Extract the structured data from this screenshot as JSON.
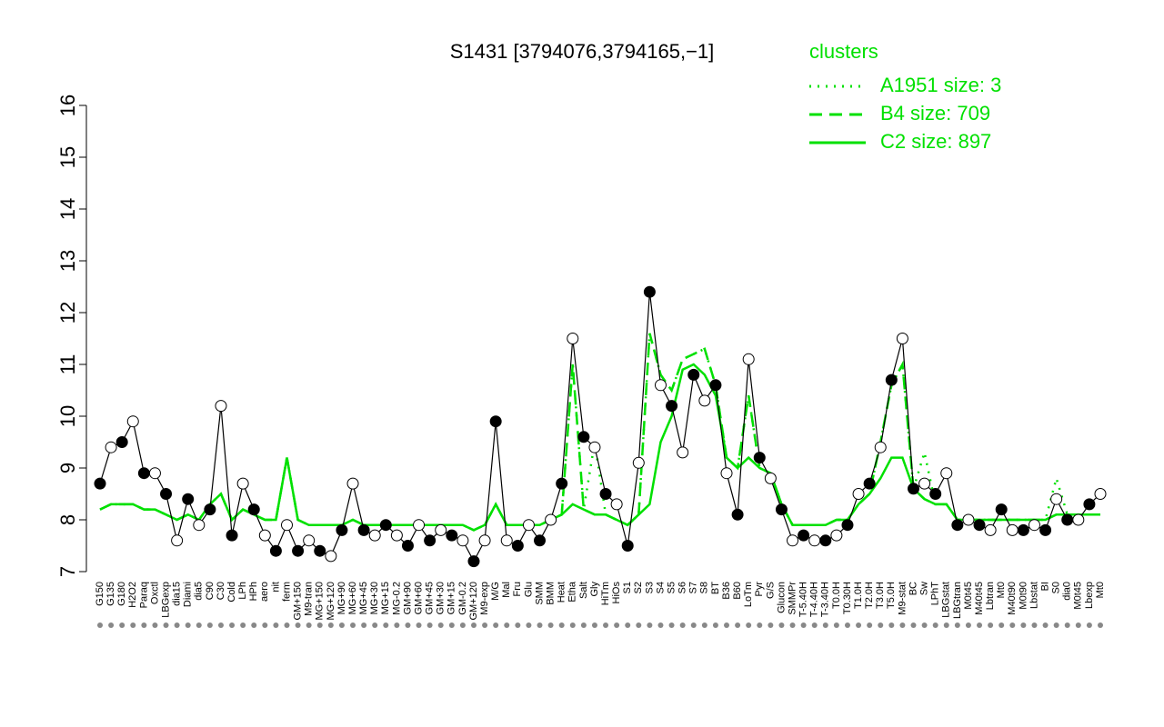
{
  "chart_data": {
    "type": "line",
    "title": "S1431 [3794076,3794165,−1]",
    "categories": [
      "G150",
      "G135",
      "G180",
      "H2O2",
      "Paraq",
      "Oxctl",
      "LBGexp",
      "dia15",
      "Diami",
      "dia5",
      "C90",
      "C30",
      "Cold",
      "LPh",
      "HPh",
      "aero",
      "nit",
      "ferm",
      "GM+150",
      "M9-tran",
      "MG+150",
      "MG+120",
      "MG+90",
      "MG+60",
      "MG+45",
      "MG+30",
      "MG+15",
      "MG-0.2",
      "GM+90",
      "GM+60",
      "GM+45",
      "GM+30",
      "GM+15",
      "GM-0.2",
      "GM+120",
      "M9-exp",
      "M/G",
      "Mal",
      "Fru",
      "Glu",
      "SMM",
      "BMM",
      "Heat",
      "Etha",
      "Salt",
      "Gly",
      "HiTm",
      "HiOs",
      "S1",
      "S2",
      "S3",
      "S4",
      "S5",
      "S6",
      "S7",
      "S8",
      "BT",
      "B36",
      "B60",
      "LoTm",
      "Pyr",
      "G/S",
      "Glucon",
      "SMMPr",
      "T-5.40H",
      "T-4.40H",
      "T-3.40H",
      "T0.0H",
      "T0.30H",
      "T1.0H",
      "T2.0H",
      "T3.0H",
      "T5.0H",
      "M9-stat",
      "BC",
      "Sw",
      "LPhT",
      "LBGstat",
      "LBGtran",
      "M0t45",
      "M40t45",
      "Lbtran",
      "Mt0",
      "M40t90",
      "M0t90",
      "Lbstat",
      "BI",
      "S0",
      "dia0",
      "M0t45",
      "Lbexp",
      "Mt0"
    ],
    "values": [
      8.7,
      9.4,
      9.5,
      9.9,
      8.9,
      8.9,
      8.5,
      7.6,
      8.4,
      7.9,
      8.2,
      10.2,
      7.7,
      8.7,
      8.2,
      7.7,
      7.4,
      7.9,
      7.4,
      7.6,
      7.4,
      7.3,
      7.8,
      8.7,
      7.8,
      7.7,
      7.9,
      7.7,
      7.5,
      7.9,
      7.6,
      7.8,
      7.7,
      7.6,
      7.2,
      7.6,
      9.9,
      7.6,
      7.5,
      7.9,
      7.6,
      8.0,
      8.7,
      11.5,
      9.6,
      9.4,
      8.5,
      8.3,
      7.5,
      9.1,
      12.4,
      10.6,
      10.2,
      9.3,
      10.8,
      10.3,
      10.6,
      8.9,
      8.1,
      11.1,
      9.2,
      8.8,
      8.2,
      7.6,
      7.7,
      7.6,
      7.6,
      7.7,
      7.9,
      8.5,
      8.7,
      9.4,
      10.7,
      11.5,
      8.6,
      8.7,
      8.5,
      8.9,
      7.9,
      8.0,
      7.9,
      7.8,
      8.2,
      7.8,
      7.8,
      7.9,
      7.8,
      8.4,
      8.0,
      8.0,
      8.3,
      8.5
    ],
    "color": "#000000",
    "legend_title": "clusters",
    "series": [
      {
        "name": "A1951 size: 3",
        "color": "#00e000",
        "dash": "dotted",
        "values": [
          8.2,
          8.3,
          8.3,
          8.3,
          8.2,
          8.2,
          8.1,
          8.0,
          8.1,
          8.0,
          8.3,
          8.5,
          8.0,
          8.2,
          8.1,
          8.0,
          8.0,
          9.2,
          8.0,
          7.9,
          7.9,
          7.9,
          7.9,
          8.0,
          7.9,
          7.9,
          7.9,
          7.9,
          7.9,
          7.9,
          7.9,
          7.9,
          7.9,
          7.9,
          7.8,
          7.9,
          8.3,
          7.9,
          7.9,
          7.9,
          7.9,
          8.0,
          8.1,
          11.0,
          8.2,
          9.5,
          8.1,
          8.0,
          7.9,
          8.1,
          11.6,
          10.8,
          10.5,
          11.1,
          11.2,
          11.3,
          10.6,
          9.2,
          9.0,
          10.4,
          9.0,
          8.9,
          8.3,
          7.9,
          7.9,
          7.9,
          7.9,
          8.0,
          8.0,
          8.3,
          8.5,
          9.5,
          10.6,
          11.0,
          8.6,
          9.3,
          8.3,
          8.3,
          8.0,
          8.0,
          8.0,
          8.0,
          8.0,
          8.0,
          8.0,
          8.0,
          8.0,
          8.8,
          8.1,
          8.1,
          8.1,
          8.1
        ]
      },
      {
        "name": "B4 size: 709",
        "color": "#00e000",
        "dash": "dashed",
        "values": [
          8.2,
          8.3,
          8.3,
          8.3,
          8.2,
          8.2,
          8.1,
          8.0,
          8.1,
          8.0,
          8.3,
          8.5,
          8.0,
          8.2,
          8.1,
          8.0,
          8.0,
          9.2,
          8.0,
          7.9,
          7.9,
          7.9,
          7.9,
          8.0,
          7.9,
          7.9,
          7.9,
          7.9,
          7.9,
          7.9,
          7.9,
          7.9,
          7.9,
          7.9,
          7.8,
          7.9,
          8.3,
          7.9,
          7.9,
          7.9,
          7.9,
          8.0,
          8.1,
          11.0,
          8.2,
          8.1,
          8.1,
          8.0,
          7.9,
          8.1,
          11.6,
          10.8,
          10.5,
          11.1,
          11.2,
          11.3,
          10.6,
          9.2,
          9.0,
          10.4,
          9.0,
          8.9,
          8.3,
          7.9,
          7.9,
          7.9,
          7.9,
          8.0,
          8.0,
          8.3,
          8.5,
          9.5,
          10.6,
          11.0,
          8.6,
          8.4,
          8.3,
          8.3,
          8.0,
          8.0,
          8.0,
          8.0,
          8.0,
          8.0,
          8.0,
          8.0,
          8.0,
          8.1,
          8.1,
          8.1,
          8.1,
          8.1
        ]
      },
      {
        "name": "C2 size: 897",
        "color": "#00e000",
        "dash": "solid",
        "values": [
          8.2,
          8.3,
          8.3,
          8.3,
          8.2,
          8.2,
          8.1,
          8.0,
          8.1,
          8.0,
          8.3,
          8.5,
          8.0,
          8.2,
          8.1,
          8.0,
          8.0,
          9.2,
          8.0,
          7.9,
          7.9,
          7.9,
          7.9,
          8.0,
          7.9,
          7.9,
          7.9,
          7.9,
          7.9,
          7.9,
          7.9,
          7.9,
          7.9,
          7.9,
          7.8,
          7.9,
          8.3,
          7.9,
          7.9,
          7.9,
          7.9,
          8.0,
          8.1,
          8.3,
          8.2,
          8.1,
          8.1,
          8.0,
          7.9,
          8.1,
          8.3,
          9.5,
          10.0,
          10.9,
          11.0,
          10.8,
          10.4,
          9.2,
          9.0,
          9.2,
          9.0,
          8.9,
          8.3,
          7.9,
          7.9,
          7.9,
          7.9,
          8.0,
          8.0,
          8.3,
          8.5,
          8.8,
          9.2,
          9.2,
          8.6,
          8.4,
          8.3,
          8.3,
          8.0,
          8.0,
          8.0,
          8.0,
          8.0,
          8.0,
          8.0,
          8.0,
          8.0,
          8.1,
          8.1,
          8.1,
          8.1,
          8.1
        ]
      }
    ],
    "ylim": [
      7,
      16
    ],
    "yticks": [
      7,
      8,
      9,
      10,
      11,
      12,
      13,
      14,
      15,
      16
    ]
  }
}
